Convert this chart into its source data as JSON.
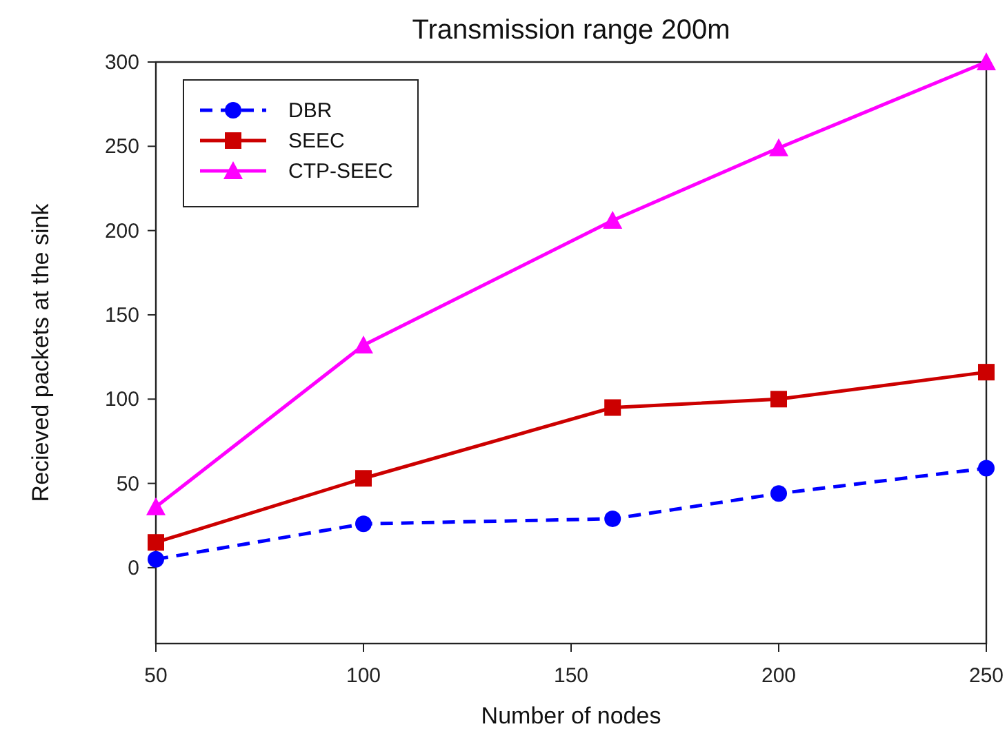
{
  "chart_data": {
    "type": "line",
    "title": "Transmission range 200m",
    "xlabel": "Number of nodes",
    "ylabel": "Recieved packets at the sink",
    "x": [
      50,
      100,
      160,
      200,
      250
    ],
    "series": [
      {
        "name": "DBR",
        "color": "#0000ff",
        "values": [
          5,
          26,
          29,
          44,
          59
        ],
        "marker": "circle",
        "line_style": "dashed"
      },
      {
        "name": "SEEC",
        "color": "#cc0000",
        "values": [
          15,
          53,
          95,
          100,
          116
        ],
        "marker": "square",
        "line_style": "solid"
      },
      {
        "name": "CTP-SEEC",
        "color": "#ff00ff",
        "values": [
          36,
          132,
          206,
          249,
          300
        ],
        "marker": "triangle",
        "line_style": "solid"
      }
    ],
    "xlim": [
      50,
      250
    ],
    "xticks": [
      50,
      100,
      150,
      200,
      250
    ],
    "ylim": [
      -45,
      300
    ],
    "yticks": [
      0,
      50,
      100,
      150,
      200,
      250,
      300
    ],
    "grid": false,
    "legend": "top left"
  }
}
